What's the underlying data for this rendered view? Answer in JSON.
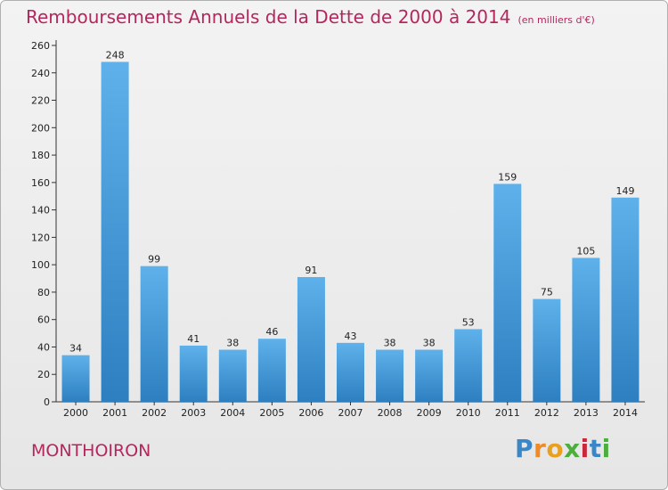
{
  "title": "Remboursements Annuels de la Dette de 2000 à 2014",
  "unit_note": "(en milliers d'€)",
  "commune": "MONTHOIRON",
  "logo": {
    "letters": [
      "P",
      "r",
      "o",
      "x",
      "i",
      "t",
      "i"
    ],
    "colors": [
      "#3a87c8",
      "#f08a24",
      "#e8a020",
      "#4cae3c",
      "#c8283c",
      "#3a87c8",
      "#4cae3c"
    ]
  },
  "colors": {
    "bar_light": "#5eb1ea",
    "bar_dark": "#2d7fc0",
    "title": "#b4275d"
  },
  "chart_data": {
    "type": "bar",
    "title": "Remboursements Annuels de la Dette de 2000 à 2014",
    "xlabel": "",
    "ylabel": "",
    "categories": [
      "2000",
      "2001",
      "2002",
      "2003",
      "2004",
      "2005",
      "2006",
      "2007",
      "2008",
      "2009",
      "2010",
      "2011",
      "2012",
      "2013",
      "2014"
    ],
    "values": [
      34,
      248,
      99,
      41,
      38,
      46,
      91,
      43,
      38,
      38,
      53,
      159,
      75,
      105,
      149
    ],
    "ylim": [
      0,
      260
    ],
    "yticks": [
      0,
      20,
      40,
      60,
      80,
      100,
      120,
      140,
      160,
      180,
      200,
      220,
      240,
      260
    ],
    "grid": false
  }
}
